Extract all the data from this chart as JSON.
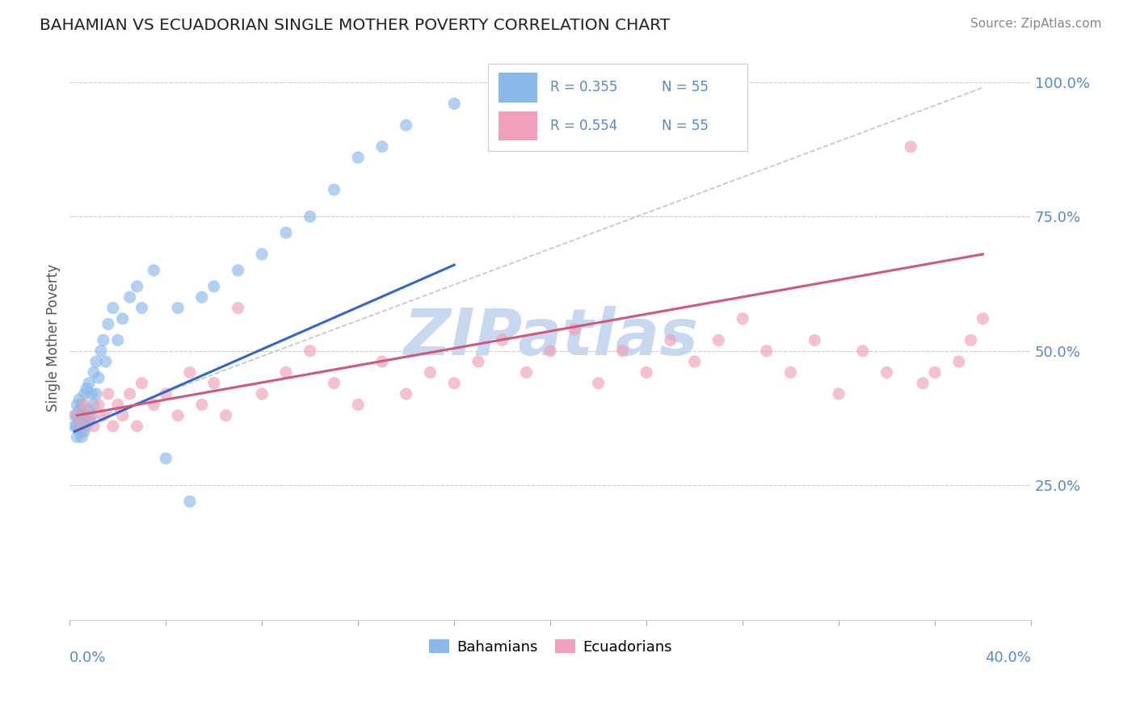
{
  "title": "BAHAMIAN VS ECUADORIAN SINGLE MOTHER POVERTY CORRELATION CHART",
  "source": "Source: ZipAtlas.com",
  "ylabel": "Single Mother Poverty",
  "xlim": [
    0.0,
    0.4
  ],
  "ylim": [
    0.0,
    1.05
  ],
  "legend_r1": "R = 0.355",
  "legend_n1": "N = 55",
  "legend_r2": "R = 0.554",
  "legend_n2": "N = 55",
  "blue_dot_color": "#89b8e8",
  "pink_dot_color": "#f0a0b8",
  "blue_line_color": "#3366cc",
  "pink_line_color": "#d05878",
  "dash_line_color": "#b8b8cc",
  "watermark": "ZIPatlas",
  "watermark_color": "#c8d8f0",
  "grid_color": "#cccccc",
  "ytick_color": "#5588cc",
  "xtick_color": "#5588cc",
  "title_color": "#222222",
  "source_color": "#888888",
  "ylabel_color": "#555555",
  "bah_x": [
    0.002,
    0.002,
    0.003,
    0.003,
    0.003,
    0.003,
    0.004,
    0.004,
    0.004,
    0.004,
    0.005,
    0.005,
    0.005,
    0.005,
    0.006,
    0.006,
    0.006,
    0.007,
    0.007,
    0.007,
    0.008,
    0.008,
    0.008,
    0.009,
    0.009,
    0.01,
    0.01,
    0.011,
    0.011,
    0.012,
    0.013,
    0.014,
    0.015,
    0.016,
    0.018,
    0.02,
    0.022,
    0.025,
    0.028,
    0.03,
    0.035,
    0.04,
    0.045,
    0.05,
    0.055,
    0.06,
    0.07,
    0.08,
    0.09,
    0.1,
    0.11,
    0.12,
    0.13,
    0.14,
    0.16
  ],
  "bah_y": [
    0.36,
    0.38,
    0.34,
    0.36,
    0.38,
    0.4,
    0.35,
    0.37,
    0.39,
    0.41,
    0.34,
    0.36,
    0.38,
    0.4,
    0.35,
    0.37,
    0.42,
    0.36,
    0.38,
    0.43,
    0.37,
    0.39,
    0.44,
    0.38,
    0.42,
    0.4,
    0.46,
    0.42,
    0.48,
    0.45,
    0.5,
    0.52,
    0.48,
    0.55,
    0.58,
    0.52,
    0.56,
    0.6,
    0.62,
    0.58,
    0.65,
    0.3,
    0.58,
    0.22,
    0.6,
    0.62,
    0.65,
    0.68,
    0.72,
    0.75,
    0.8,
    0.86,
    0.88,
    0.92,
    0.96
  ],
  "ecu_x": [
    0.003,
    0.005,
    0.006,
    0.008,
    0.01,
    0.012,
    0.014,
    0.016,
    0.018,
    0.02,
    0.022,
    0.025,
    0.028,
    0.03,
    0.035,
    0.04,
    0.045,
    0.05,
    0.055,
    0.06,
    0.065,
    0.07,
    0.08,
    0.09,
    0.1,
    0.11,
    0.12,
    0.13,
    0.14,
    0.15,
    0.16,
    0.17,
    0.18,
    0.19,
    0.2,
    0.21,
    0.22,
    0.23,
    0.24,
    0.25,
    0.26,
    0.27,
    0.28,
    0.29,
    0.3,
    0.31,
    0.32,
    0.33,
    0.34,
    0.35,
    0.355,
    0.36,
    0.37,
    0.375,
    0.38
  ],
  "ecu_y": [
    0.38,
    0.36,
    0.4,
    0.38,
    0.36,
    0.4,
    0.38,
    0.42,
    0.36,
    0.4,
    0.38,
    0.42,
    0.36,
    0.44,
    0.4,
    0.42,
    0.38,
    0.46,
    0.4,
    0.44,
    0.38,
    0.58,
    0.42,
    0.46,
    0.5,
    0.44,
    0.4,
    0.48,
    0.42,
    0.46,
    0.44,
    0.48,
    0.52,
    0.46,
    0.5,
    0.54,
    0.44,
    0.5,
    0.46,
    0.52,
    0.48,
    0.52,
    0.56,
    0.5,
    0.46,
    0.52,
    0.42,
    0.5,
    0.46,
    0.88,
    0.44,
    0.46,
    0.48,
    0.52,
    0.56
  ],
  "bah_line_x": [
    0.002,
    0.16
  ],
  "bah_line_y": [
    0.35,
    0.66
  ],
  "ecu_line_x": [
    0.003,
    0.38
  ],
  "ecu_line_y": [
    0.38,
    0.68
  ],
  "dash_line_x": [
    0.002,
    0.38
  ],
  "dash_line_y": [
    0.36,
    0.99
  ]
}
